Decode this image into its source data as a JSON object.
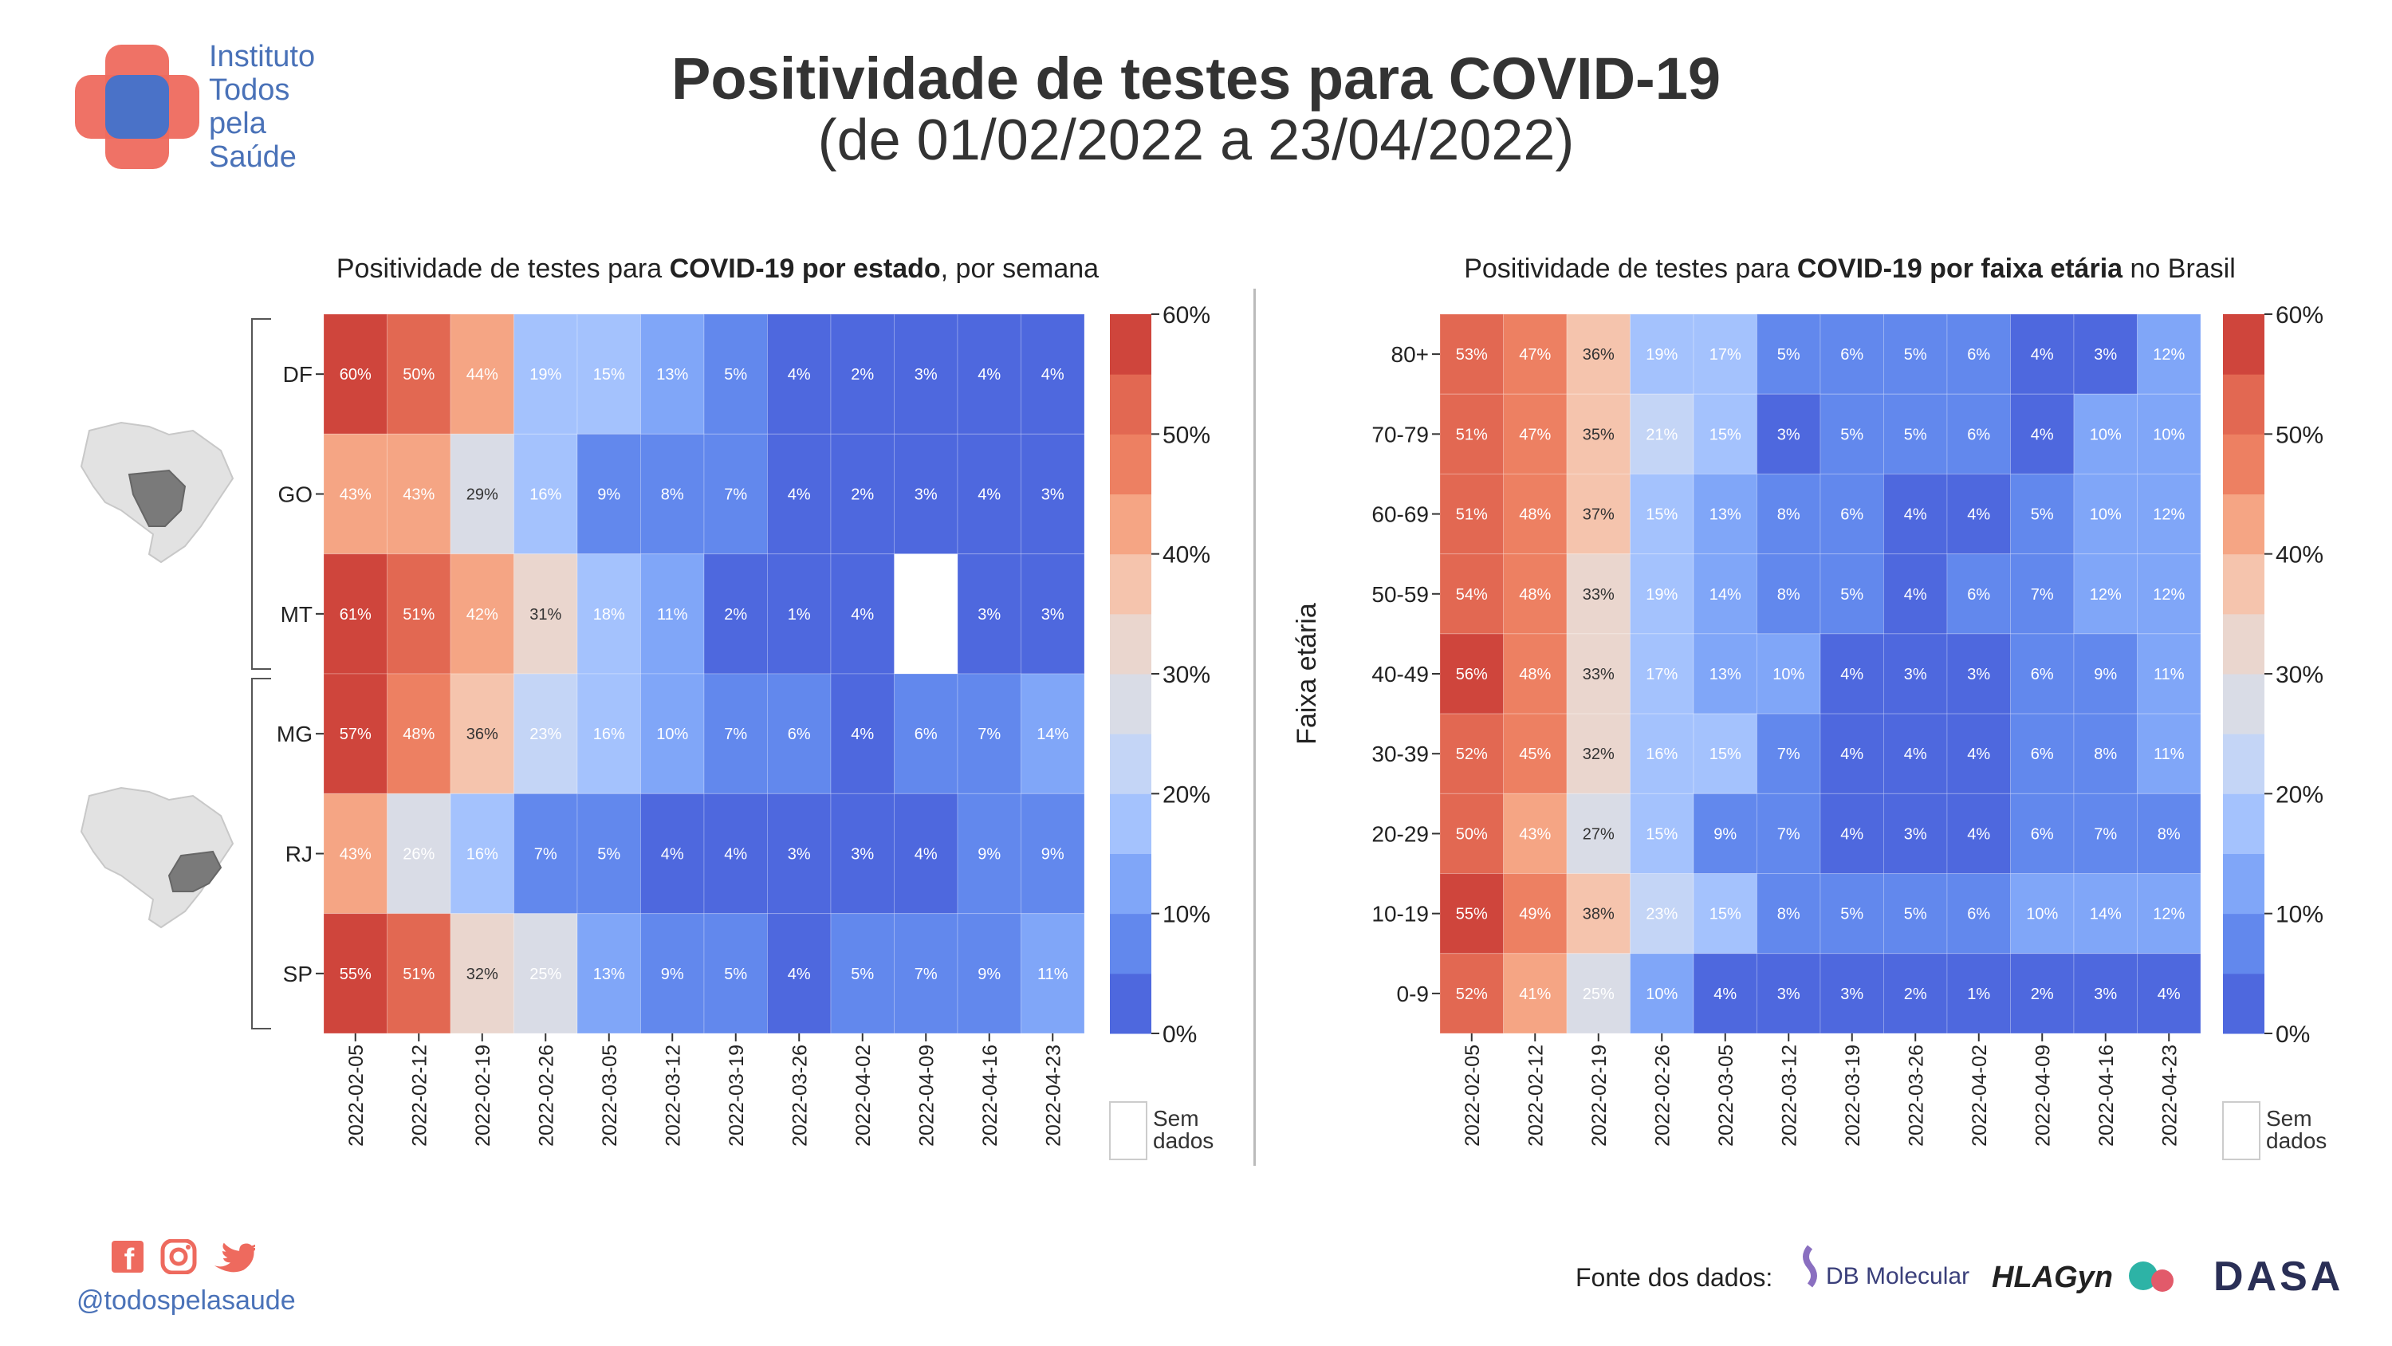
{
  "header": {
    "title": "Positividade de testes para COVID-19",
    "subtitle": "(de 01/02/2022 a 23/04/2022)"
  },
  "logo": {
    "lines": [
      "Instituto",
      "Todos",
      "pela",
      "Saúde"
    ],
    "colors": {
      "red": "#ee6a5e",
      "blue": "#4a72c8"
    }
  },
  "footer": {
    "handle": "@todospelasaude",
    "social_icons": [
      "facebook-icon",
      "instagram-icon",
      "twitter-icon"
    ],
    "source_label": "Fonte dos dados:",
    "sources": [
      "DB Molecular",
      "HLAGyn",
      "DASA"
    ]
  },
  "legend": {
    "no_data_line1": "Sem",
    "no_data_line2": "dados"
  },
  "chart_data": [
    {
      "type": "heatmap",
      "title_parts": [
        "Positividade de testes para ",
        "COVID-19 por estado",
        ", por semana"
      ],
      "ylabel": "",
      "xlabel": "",
      "x": [
        "2022-02-05",
        "2022-02-12",
        "2022-02-19",
        "2022-02-26",
        "2022-03-05",
        "2022-03-12",
        "2022-03-19",
        "2022-03-26",
        "2022-04-02",
        "2022-04-09",
        "2022-04-16",
        "2022-04-23"
      ],
      "y": [
        "DF",
        "GO",
        "MT",
        "MG",
        "RJ",
        "SP"
      ],
      "groups": [
        {
          "rows": [
            "DF",
            "GO",
            "MT"
          ],
          "map_highlight": "centro-oeste"
        },
        {
          "rows": [
            "MG",
            "RJ",
            "SP"
          ],
          "map_highlight": "sudeste"
        }
      ],
      "values": [
        [
          60,
          50,
          44,
          19,
          15,
          13,
          5,
          4,
          2,
          3,
          4,
          4
        ],
        [
          43,
          43,
          29,
          16,
          9,
          8,
          7,
          4,
          2,
          3,
          4,
          3
        ],
        [
          61,
          51,
          42,
          31,
          18,
          11,
          2,
          1,
          4,
          null,
          3,
          3
        ],
        [
          57,
          48,
          36,
          23,
          16,
          10,
          7,
          6,
          4,
          6,
          7,
          14
        ],
        [
          43,
          26,
          16,
          7,
          5,
          4,
          4,
          3,
          3,
          4,
          9,
          9
        ],
        [
          55,
          51,
          32,
          25,
          13,
          9,
          5,
          4,
          5,
          7,
          9,
          11
        ]
      ],
      "colorbar": {
        "min": 0,
        "max": 60,
        "ticks": [
          "0%",
          "10%",
          "20%",
          "30%",
          "40%",
          "50%",
          "60%"
        ]
      }
    },
    {
      "type": "heatmap",
      "title_parts": [
        "Positividade de testes para ",
        "COVID-19 por faixa etária",
        " no Brasil"
      ],
      "ylabel": "Faixa etária",
      "xlabel": "",
      "x": [
        "2022-02-05",
        "2022-02-12",
        "2022-02-19",
        "2022-02-26",
        "2022-03-05",
        "2022-03-12",
        "2022-03-19",
        "2022-03-26",
        "2022-04-02",
        "2022-04-09",
        "2022-04-16",
        "2022-04-23"
      ],
      "y": [
        "80+",
        "70-79",
        "60-69",
        "50-59",
        "40-49",
        "30-39",
        "20-29",
        "10-19",
        "0-9"
      ],
      "values": [
        [
          53,
          47,
          36,
          19,
          17,
          5,
          6,
          5,
          6,
          4,
          3,
          12
        ],
        [
          51,
          47,
          35,
          21,
          15,
          3,
          5,
          5,
          6,
          4,
          10,
          10
        ],
        [
          51,
          48,
          37,
          15,
          13,
          8,
          6,
          4,
          4,
          5,
          10,
          12
        ],
        [
          54,
          48,
          33,
          19,
          14,
          8,
          5,
          4,
          6,
          7,
          12,
          12
        ],
        [
          56,
          48,
          33,
          17,
          13,
          10,
          4,
          3,
          3,
          6,
          9,
          11
        ],
        [
          52,
          45,
          32,
          16,
          15,
          7,
          4,
          4,
          4,
          6,
          8,
          11
        ],
        [
          50,
          43,
          27,
          15,
          9,
          7,
          4,
          3,
          4,
          6,
          7,
          8
        ],
        [
          55,
          49,
          38,
          23,
          15,
          8,
          5,
          5,
          6,
          10,
          14,
          12
        ],
        [
          52,
          41,
          25,
          10,
          4,
          3,
          3,
          2,
          1,
          2,
          3,
          4
        ]
      ],
      "colorbar": {
        "min": 0,
        "max": 60,
        "ticks": [
          "0%",
          "10%",
          "20%",
          "30%",
          "40%",
          "50%",
          "60%"
        ]
      }
    }
  ],
  "palette": [
    "#4e68de",
    "#6288ed",
    "#80a6f8",
    "#a4c2fd",
    "#c4d5f6",
    "#d9dce6",
    "#ead6ce",
    "#f5c4ad",
    "#f5a584",
    "#ed8062",
    "#e26852",
    "#cf453c"
  ]
}
